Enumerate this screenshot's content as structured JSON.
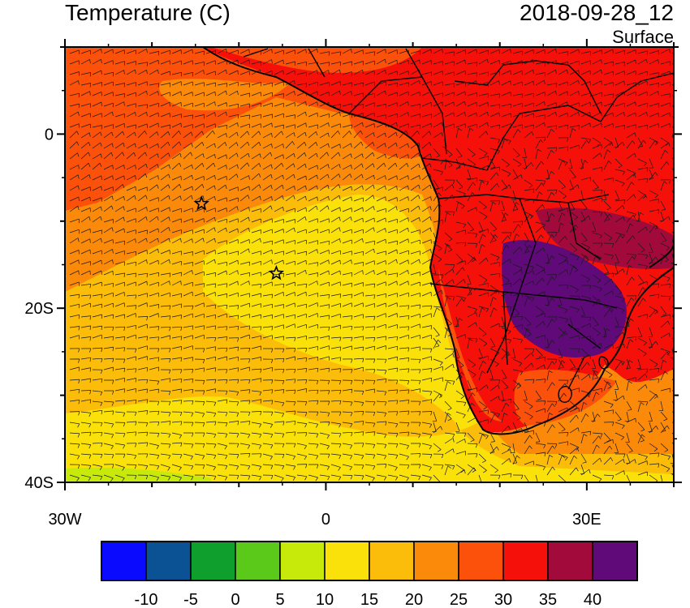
{
  "title": "Temperature (C)",
  "datetime": "2018-09-28_12",
  "level": "Surface",
  "map": {
    "lon_range": [
      -30,
      40
    ],
    "lat_range": [
      -40,
      10
    ],
    "x_ticks": [
      {
        "lon": -30,
        "label": "30W"
      },
      {
        "lon": 0,
        "label": "0"
      },
      {
        "lon": 30,
        "label": "30E"
      }
    ],
    "y_ticks": [
      {
        "lat": 0,
        "label": "0"
      },
      {
        "lat": -20,
        "label": "20S"
      },
      {
        "lat": -40,
        "label": "40S"
      }
    ],
    "markers": [
      {
        "name": "star-marker-1",
        "lon": -14.3,
        "lat": -8
      },
      {
        "name": "star-marker-2",
        "lon": -5.7,
        "lat": -16
      }
    ]
  },
  "colorbar": {
    "colors": [
      "#0a0aff",
      "#0b5294",
      "#0f9f2c",
      "#5bc91a",
      "#c8ea0a",
      "#fbe10a",
      "#fbbd0a",
      "#fb8a0a",
      "#fb510a",
      "#f5100a",
      "#a20a3b",
      "#5f0a78"
    ],
    "labels": [
      "-10",
      "-5",
      "0",
      "5",
      "10",
      "15",
      "20",
      "25",
      "30",
      "35",
      "40"
    ]
  },
  "colors": {
    "yellow": "#fbe10a",
    "light_orange": "#fbbd0a",
    "orange": "#fb8a0a",
    "dark_orange": "#fb510a",
    "red": "#f5100a",
    "crimson": "#a20a3b",
    "purple": "#5f0a78",
    "green_yellow": "#c8ea0a"
  }
}
